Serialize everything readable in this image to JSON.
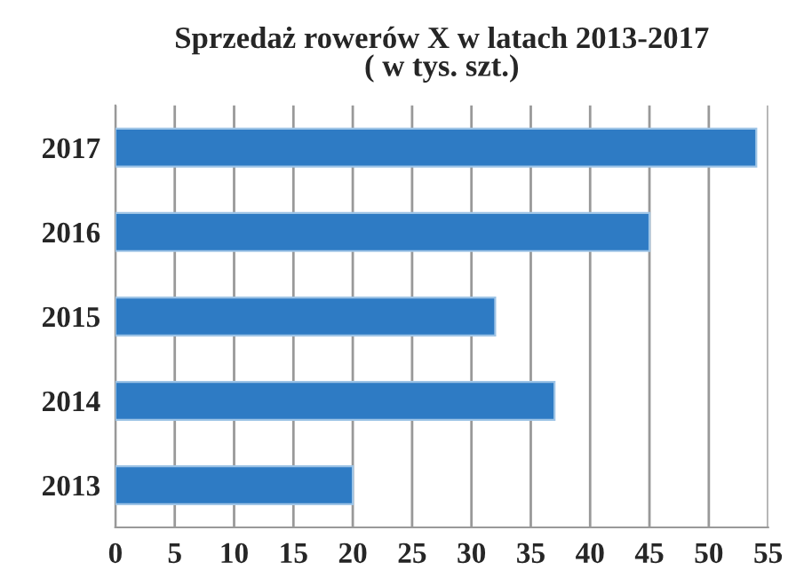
{
  "chart_data": {
    "type": "bar",
    "orientation": "horizontal",
    "title": "Sprzedaż rowerów X w latach 2013-2017\n( w tys. szt.)",
    "categories": [
      "2017",
      "2016",
      "2015",
      "2014",
      "2013"
    ],
    "values": [
      54,
      45,
      32,
      37,
      20
    ],
    "color": "#2e7bc4",
    "xlim": [
      0,
      55
    ],
    "xticks": [
      0,
      5,
      10,
      15,
      20,
      25,
      30,
      35,
      40,
      45,
      50,
      55
    ],
    "grid": "x",
    "legend": false
  }
}
